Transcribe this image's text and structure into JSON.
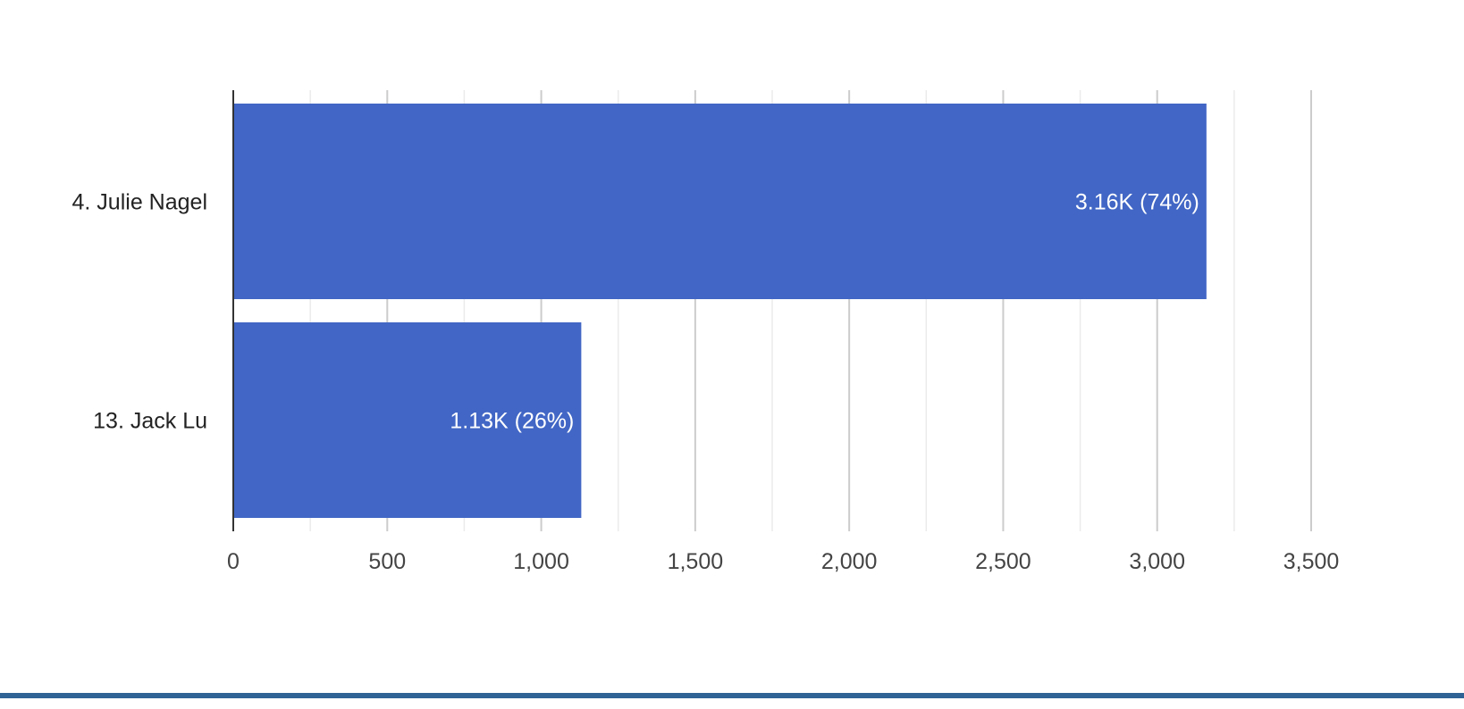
{
  "chart_data": {
    "type": "bar",
    "orientation": "horizontal",
    "categories": [
      "4. Julie Nagel",
      "13. Jack Lu"
    ],
    "values": [
      3160,
      1130
    ],
    "data_labels": [
      "3.16K (74%)",
      "1.13K (26%)"
    ],
    "xlim": [
      0,
      3750
    ],
    "x_ticks": [
      0,
      500,
      1000,
      1500,
      2000,
      2500,
      3000,
      3500
    ],
    "x_tick_labels": [
      "0",
      "500",
      "1,000",
      "1,500",
      "2,000",
      "2,500",
      "3,000",
      "3,500"
    ],
    "minor_gridlines": true,
    "grid": true,
    "legend": "none",
    "title": "",
    "xlabel": "",
    "ylabel": ""
  },
  "colors": {
    "bar": "#4166c5",
    "major_grid": "#cccccc",
    "minor_grid": "#ebebeb",
    "axis": "#333333",
    "bottom_rule": "#2f6395"
  }
}
